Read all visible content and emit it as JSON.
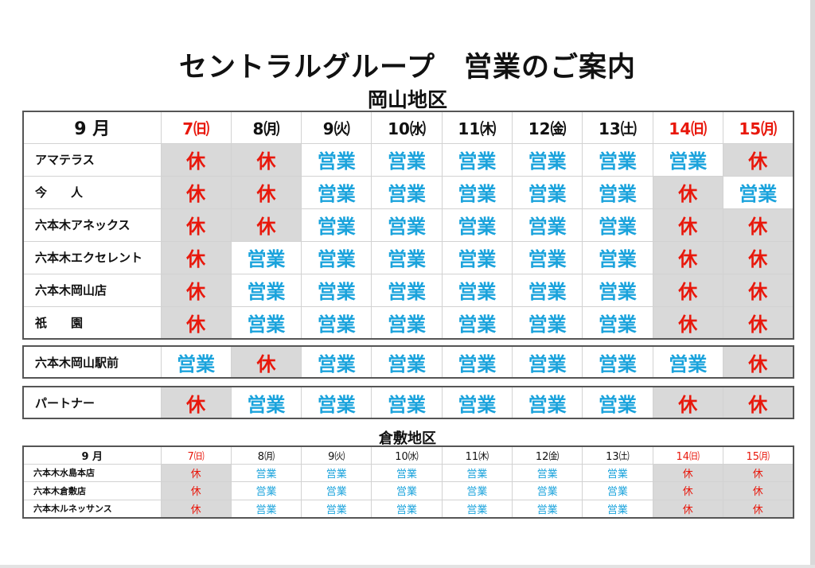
{
  "header": {
    "title": "セントラルグループ　営業のご案内",
    "region1": "岡山地区",
    "region2": "倉敷地区"
  },
  "colors": {
    "holiday_red": "#e8180c",
    "open_blue": "#1ba3dc",
    "closed_bg": "#d9d9d9"
  },
  "status_labels": {
    "open": "営業",
    "closed": "休"
  },
  "month_label": "9 月",
  "days": [
    {
      "label": "7㈰",
      "holiday": true
    },
    {
      "label": "8㈪",
      "holiday": false
    },
    {
      "label": "9㈫",
      "holiday": false
    },
    {
      "label": "10㈬",
      "holiday": false
    },
    {
      "label": "11㈭",
      "holiday": false
    },
    {
      "label": "12㈮",
      "holiday": false
    },
    {
      "label": "13㈯",
      "holiday": false
    },
    {
      "label": "14㈰",
      "holiday": true
    },
    {
      "label": "15㈪",
      "holiday": true
    }
  ],
  "okayama_stores": [
    {
      "name": "アマテラス",
      "status": [
        "休",
        "休",
        "営業",
        "営業",
        "営業",
        "営業",
        "営業",
        "営業",
        "休"
      ]
    },
    {
      "name": "今　　人",
      "status": [
        "休",
        "休",
        "営業",
        "営業",
        "営業",
        "営業",
        "営業",
        "休",
        "営業"
      ]
    },
    {
      "name": "六本木アネックス",
      "status": [
        "休",
        "休",
        "営業",
        "営業",
        "営業",
        "営業",
        "営業",
        "休",
        "休"
      ]
    },
    {
      "name": "六本木エクセレント",
      "status": [
        "休",
        "営業",
        "営業",
        "営業",
        "営業",
        "営業",
        "営業",
        "休",
        "休"
      ]
    },
    {
      "name": "六本木岡山店",
      "status": [
        "休",
        "営業",
        "営業",
        "営業",
        "営業",
        "営業",
        "営業",
        "休",
        "休"
      ]
    },
    {
      "name": "祇　　園",
      "status": [
        "休",
        "営業",
        "営業",
        "営業",
        "営業",
        "営業",
        "営業",
        "休",
        "休"
      ]
    }
  ],
  "ekimae_store": {
    "name": "六本木岡山駅前",
    "status": [
      "営業",
      "休",
      "営業",
      "営業",
      "営業",
      "営業",
      "営業",
      "営業",
      "休"
    ]
  },
  "partner_store": {
    "name": "パートナー",
    "status": [
      "休",
      "営業",
      "営業",
      "営業",
      "営業",
      "営業",
      "営業",
      "休",
      "休"
    ]
  },
  "kurashiki_stores": [
    {
      "name": "六本木水島本店",
      "status": [
        "休",
        "営業",
        "営業",
        "営業",
        "営業",
        "営業",
        "営業",
        "休",
        "休"
      ]
    },
    {
      "name": "六本木倉敷店",
      "status": [
        "休",
        "営業",
        "営業",
        "営業",
        "営業",
        "営業",
        "営業",
        "休",
        "休"
      ]
    },
    {
      "name": "六本木ルネッサンス",
      "status": [
        "休",
        "営業",
        "営業",
        "営業",
        "営業",
        "営業",
        "営業",
        "休",
        "休"
      ]
    }
  ]
}
